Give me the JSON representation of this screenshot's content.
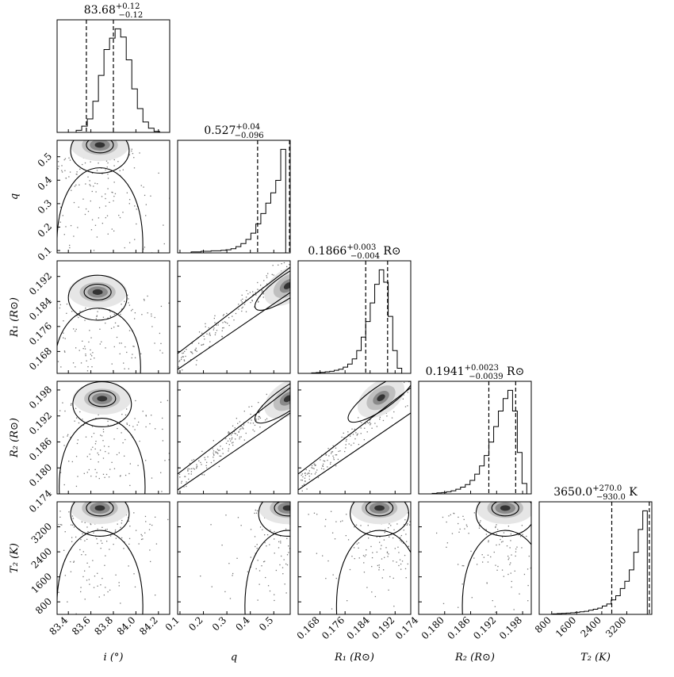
{
  "chart_data": {
    "type": "corner",
    "parameters": [
      {
        "key": "i",
        "label": "i (°)",
        "title": "83.68^{+0.12}_{−0.12}",
        "range": [
          83.3,
          84.3
        ],
        "ticks": [
          83.4,
          83.6,
          83.8,
          84.0,
          84.2
        ],
        "tick_labels": [
          "83.4",
          "83.6",
          "83.8",
          "84.0",
          "84.2"
        ],
        "quantiles": [
          83.56,
          83.68,
          83.8
        ]
      },
      {
        "key": "q",
        "label": "q",
        "title": "0.527^{+0.04}_{−0.096}",
        "range": [
          0.09,
          0.57
        ],
        "ticks": [
          0.1,
          0.2,
          0.3,
          0.4,
          0.5
        ],
        "tick_labels": [
          "0.1",
          "0.2",
          "0.3",
          "0.4",
          "0.5"
        ],
        "quantiles": [
          0.431,
          0.527,
          0.567
        ]
      },
      {
        "key": "R1",
        "label": "R₁ (R⊙)",
        "title": "0.1866^{+0.003}_{−0.004} R⊙",
        "range": [
          0.161,
          0.197
        ],
        "ticks": [
          0.168,
          0.176,
          0.184,
          0.192
        ],
        "tick_labels": [
          "0.168",
          "0.176",
          "0.184",
          "0.192"
        ],
        "quantiles": [
          0.1826,
          0.1866,
          0.1896
        ]
      },
      {
        "key": "R2",
        "label": "R₂ (R⊙)",
        "title": "0.1941^{+0.0023}_{−0.0039} R⊙",
        "range": [
          0.174,
          0.2
        ],
        "ticks": [
          0.174,
          0.18,
          0.186,
          0.192,
          0.198
        ],
        "tick_labels": [
          "0.174",
          "0.180",
          "0.186",
          "0.192",
          "0.198"
        ],
        "quantiles": [
          0.1902,
          0.1941,
          0.1964
        ]
      },
      {
        "key": "T2",
        "label": "T₂ (K)",
        "title": "3650.0^{+270.0}_{−930.0} K",
        "range": [
          400,
          4000
        ],
        "ticks": [
          800,
          1600,
          2400,
          3200
        ],
        "tick_labels": [
          "800",
          "1600",
          "2400",
          "3200"
        ],
        "quantiles": [
          2720,
          3650,
          3920
        ]
      }
    ],
    "marginal_histograms": {
      "i": [
        0.0,
        0.02,
        0.06,
        0.13,
        0.3,
        0.55,
        0.8,
        0.91,
        1.0,
        0.92,
        0.7,
        0.42,
        0.23,
        0.1,
        0.04,
        0.01,
        0.0
      ],
      "q": [
        0.01,
        0.01,
        0.015,
        0.015,
        0.02,
        0.02,
        0.025,
        0.03,
        0.04,
        0.06,
        0.09,
        0.13,
        0.19,
        0.28,
        0.38,
        0.48,
        0.58,
        0.7,
        1.0
      ],
      "R1": [
        0.005,
        0.008,
        0.01,
        0.015,
        0.02,
        0.03,
        0.04,
        0.06,
        0.09,
        0.14,
        0.22,
        0.35,
        0.5,
        0.68,
        0.86,
        1.0,
        0.88,
        0.55,
        0.22,
        0.05,
        0.0
      ],
      "R2": [
        0.005,
        0.01,
        0.012,
        0.02,
        0.03,
        0.045,
        0.065,
        0.09,
        0.13,
        0.19,
        0.27,
        0.37,
        0.5,
        0.65,
        0.8,
        0.92,
        1.0,
        0.8,
        0.4,
        0.1
      ],
      "T2": [
        0.005,
        0.008,
        0.01,
        0.012,
        0.015,
        0.02,
        0.025,
        0.03,
        0.04,
        0.05,
        0.06,
        0.08,
        0.1,
        0.14,
        0.18,
        0.25,
        0.32,
        0.43,
        0.6,
        0.82,
        1.0
      ]
    },
    "joint_peaks": {
      "q|i": [
        83.68,
        0.55
      ],
      "R1|i": [
        83.66,
        0.187
      ],
      "R1|q": [
        0.56,
        0.189
      ],
      "R2|i": [
        83.7,
        0.196
      ],
      "R2|q": [
        0.56,
        0.196
      ],
      "R2|R1": [
        0.1875,
        0.1962
      ],
      "T2|i": [
        83.68,
        3800
      ],
      "T2|q": [
        0.56,
        3800
      ],
      "T2|R1": [
        0.187,
        3800
      ],
      "T2|R2": [
        0.194,
        3800
      ]
    },
    "grid": false,
    "legend": "none"
  }
}
